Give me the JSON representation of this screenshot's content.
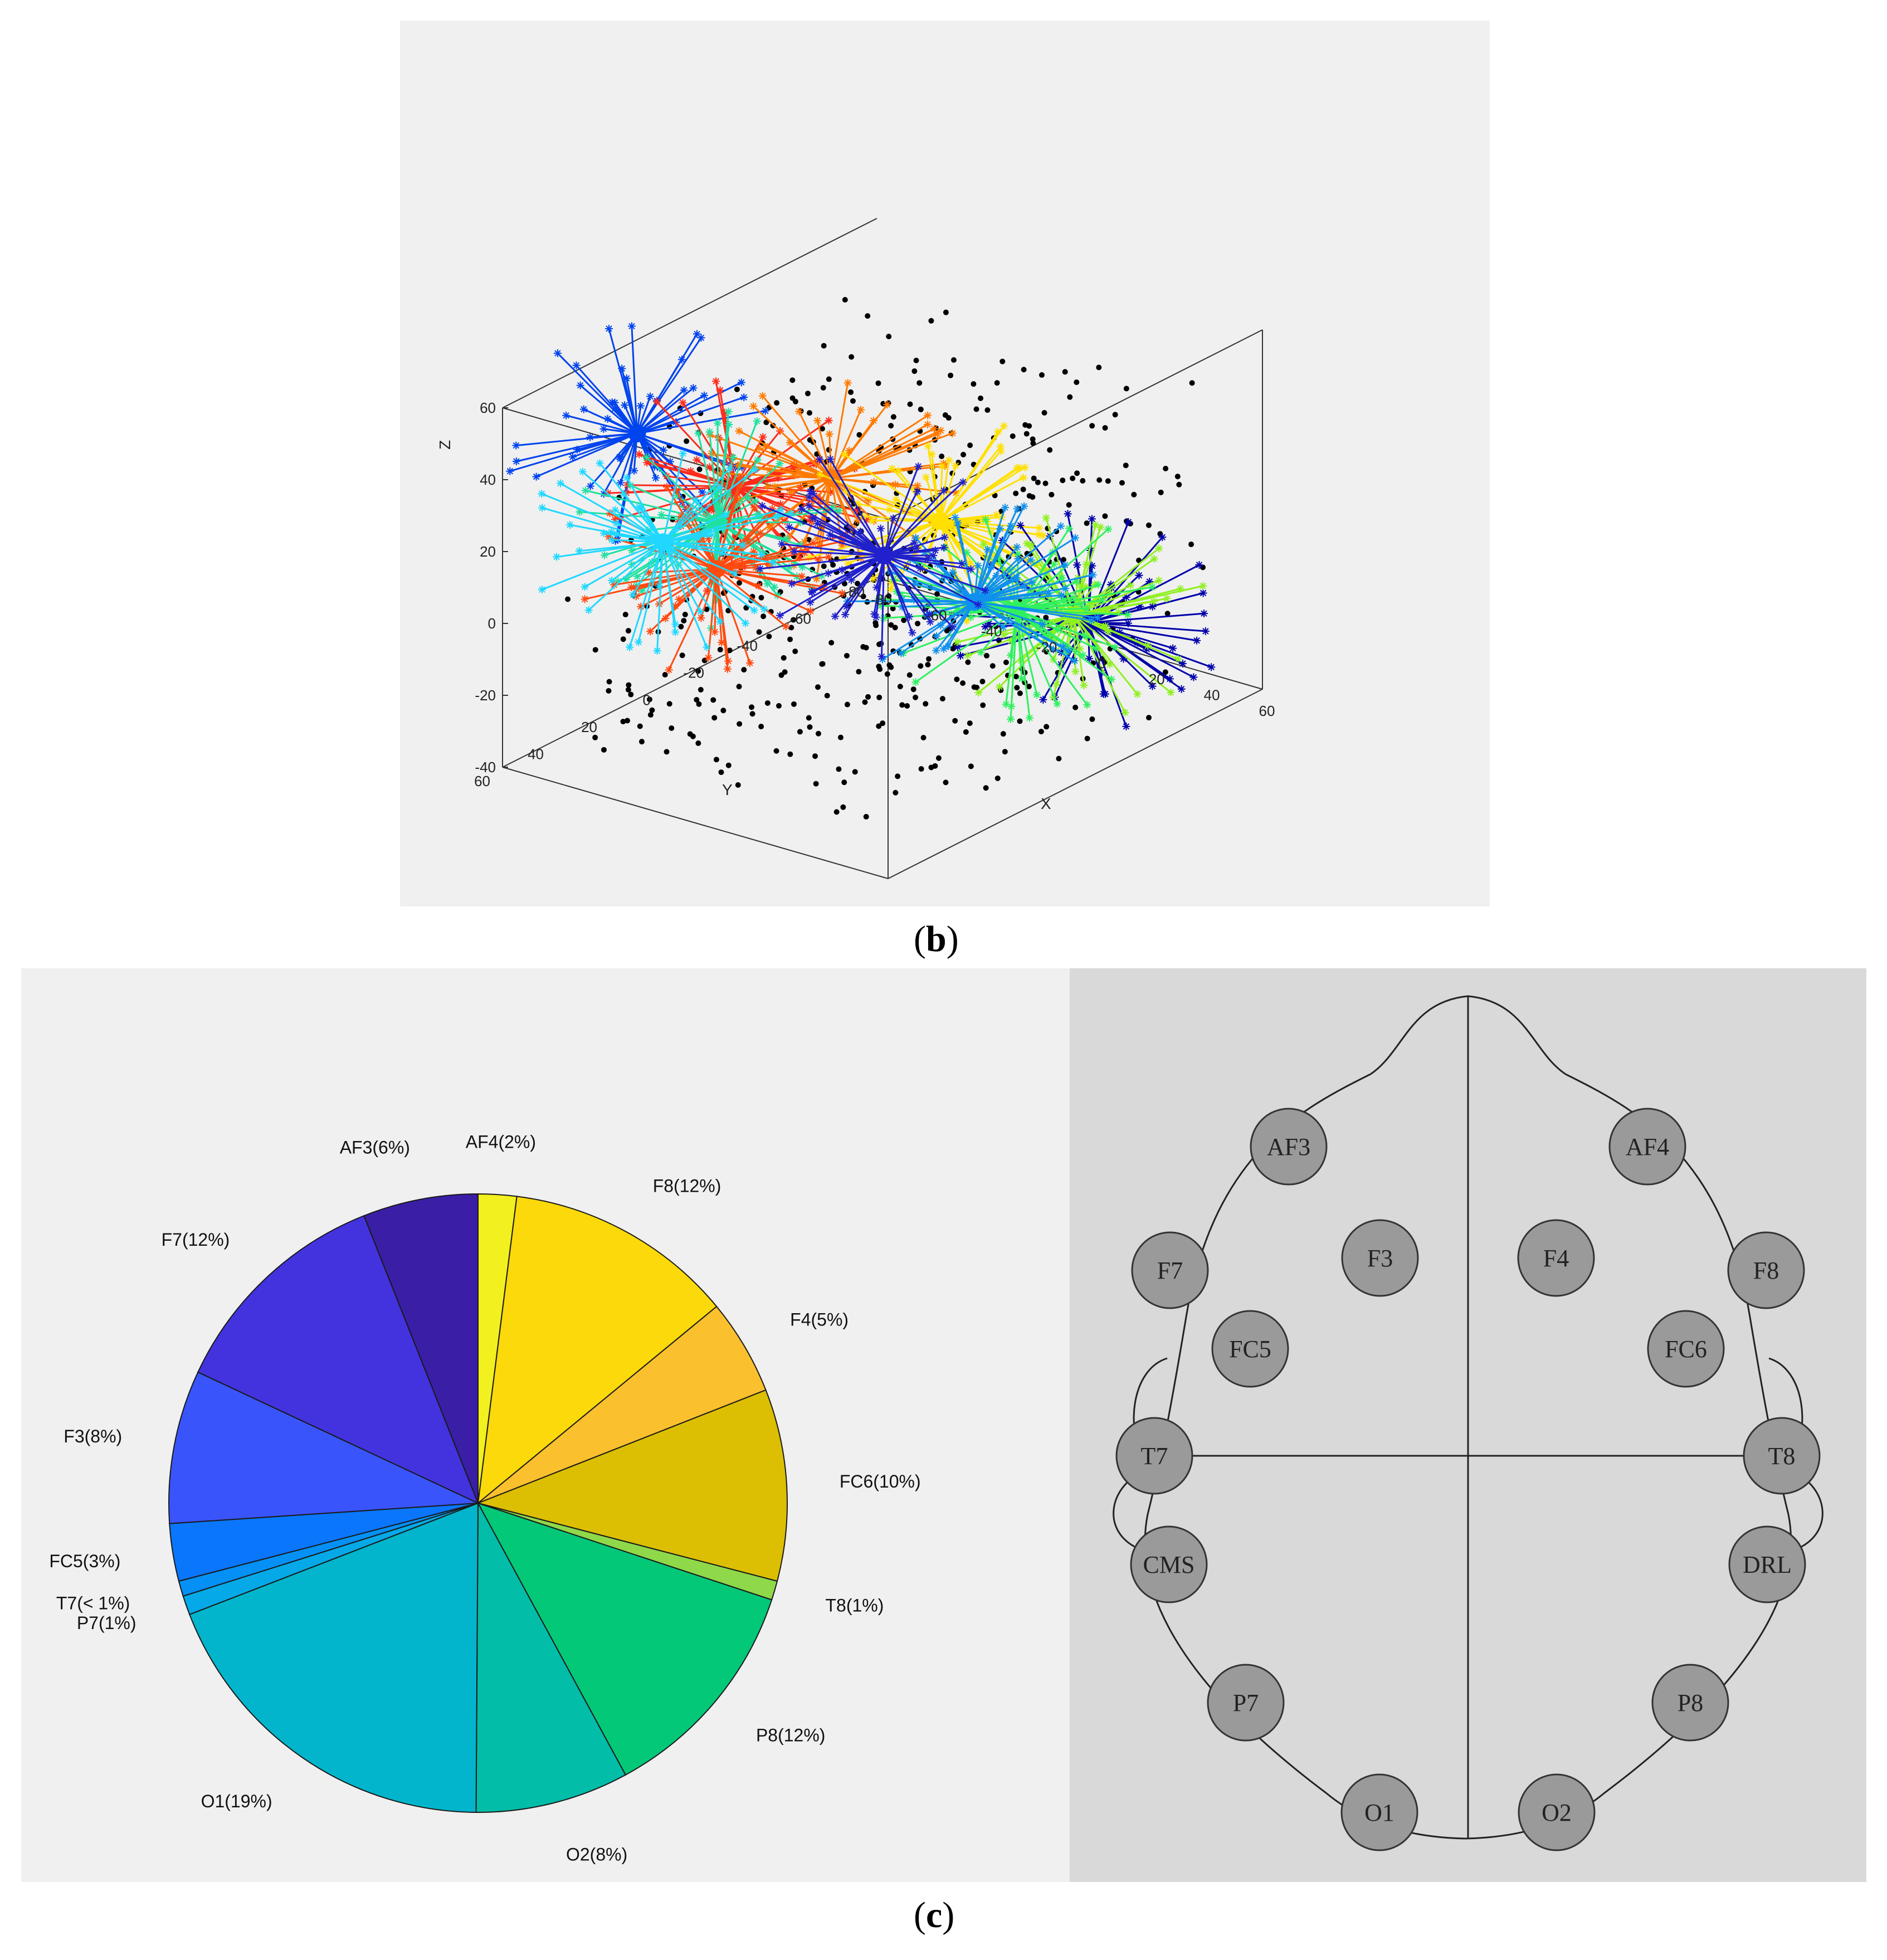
{
  "captions": {
    "b": "b",
    "c": "c"
  },
  "chart_data": [
    {
      "type": "scatter",
      "panel": "b",
      "title": "",
      "xlabel": "X",
      "ylabel": "Y",
      "zlabel": "Z",
      "x_ticks": [
        "-80",
        "-60",
        "-40",
        "-20",
        "0",
        "20",
        "40",
        "60"
      ],
      "y_ticks": [
        "-80",
        "-60",
        "-40",
        "-20",
        "0",
        "20",
        "40",
        "60"
      ],
      "z_ticks": [
        "-40",
        "-20",
        "0",
        "20",
        "40",
        "60"
      ],
      "xlim": [
        -80,
        60
      ],
      "ylim": [
        -80,
        60
      ],
      "zlim": [
        -40,
        60
      ],
      "grid": false,
      "clusters": [
        {
          "color": "#0044ee",
          "center": [
            -70,
            20,
            40
          ]
        },
        {
          "color": "#ff2a1a",
          "center": [
            -10,
            45,
            48
          ]
        },
        {
          "color": "#ff7a00",
          "center": [
            20,
            40,
            55
          ]
        },
        {
          "color": "#ffe000",
          "center": [
            40,
            20,
            40
          ]
        },
        {
          "color": "#20e0a0",
          "center": [
            -60,
            0,
            10
          ]
        },
        {
          "color": "#0000aa",
          "center": [
            55,
            -20,
            0
          ]
        },
        {
          "color": "#90f020",
          "center": [
            40,
            -30,
            -5
          ]
        },
        {
          "color": "#30f060",
          "center": [
            0,
            -50,
            -20
          ]
        },
        {
          "color": "#1090ee",
          "center": [
            -30,
            -65,
            -30
          ]
        },
        {
          "color": "#ff4a10",
          "center": [
            -80,
            -20,
            -15
          ]
        },
        {
          "color": "#20d8ff",
          "center": [
            -80,
            0,
            0
          ]
        },
        {
          "color": "#2020cc",
          "center": [
            10,
            10,
            20
          ]
        }
      ]
    },
    {
      "type": "pie",
      "panel": "c",
      "title": "",
      "slices": [
        {
          "label": "AF4(2%)",
          "value": 2,
          "color": "#f2f01e"
        },
        {
          "label": "F8(12%)",
          "value": 12,
          "color": "#fbd90a"
        },
        {
          "label": "F4(5%)",
          "value": 5,
          "color": "#fbc02d"
        },
        {
          "label": "FC6(10%)",
          "value": 10,
          "color": "#dcbf03"
        },
        {
          "label": "T8(1%)",
          "value": 1,
          "color": "#8fd84a"
        },
        {
          "label": "P8(12%)",
          "value": 12,
          "color": "#03c878"
        },
        {
          "label": "O2(8%)",
          "value": 8,
          "color": "#02bda8"
        },
        {
          "label": "O1(19%)",
          "value": 19,
          "color": "#02b5cc"
        },
        {
          "label": "P7(1%)",
          "value": 1,
          "color": "#06a9e8"
        },
        {
          "label": "T7(< 1%)",
          "value": 0.8,
          "color": "#0590f5"
        },
        {
          "label": "FC5(3%)",
          "value": 3,
          "color": "#0a76fb"
        },
        {
          "label": "F3(8%)",
          "value": 8,
          "color": "#3a54fb"
        },
        {
          "label": "F7(12%)",
          "value": 12,
          "color": "#4233de"
        },
        {
          "label": "AF3(6%)",
          "value": 6,
          "color": "#3a1ea6"
        }
      ]
    }
  ],
  "head_map": {
    "electrodes": [
      "AF3",
      "AF4",
      "F7",
      "F3",
      "F4",
      "F8",
      "FC5",
      "FC6",
      "T7",
      "T8",
      "CMS",
      "DRL",
      "P7",
      "P8",
      "O1",
      "O2"
    ]
  }
}
